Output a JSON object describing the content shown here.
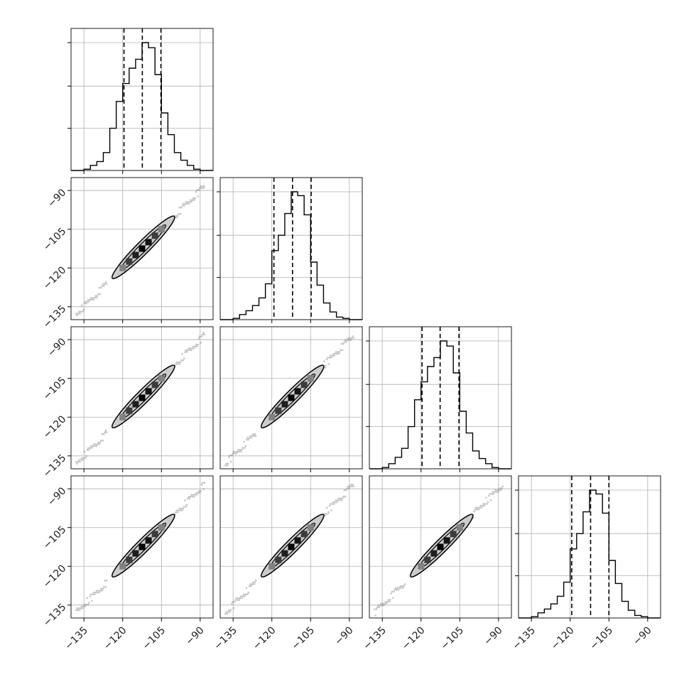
{
  "chart_data": {
    "type": "corner",
    "n_params": 4,
    "title": "",
    "param_labels": [
      "",
      "",
      "",
      ""
    ],
    "axis_range": [
      -140,
      -85
    ],
    "ticks": [
      -135,
      -120,
      -105,
      -90
    ],
    "tick_labels": [
      "−135",
      "−120",
      "−105",
      "−90"
    ],
    "grid": true,
    "histograms": [
      {
        "param": 1,
        "bin_edges": [
          -140,
          -137.5,
          -135,
          -132.5,
          -130,
          -127.5,
          -125,
          -122.5,
          -120,
          -117.5,
          -115,
          -112.5,
          -110,
          -107.5,
          -105,
          -102.5,
          -100,
          -97.5,
          -95,
          -92.5,
          -90,
          -87.5,
          -85
        ],
        "counts": [
          0,
          0,
          1,
          4,
          7,
          14,
          33,
          54,
          68,
          80,
          87,
          100,
          96,
          75,
          45,
          28,
          14,
          8,
          4,
          1,
          0,
          0
        ],
        "quantiles": [
          -119.5,
          -112.4,
          -105.2
        ]
      },
      {
        "param": 2,
        "bin_edges": [
          -140,
          -137.5,
          -135,
          -132.5,
          -130,
          -127.5,
          -125,
          -122.5,
          -120,
          -117.5,
          -115,
          -112.5,
          -110,
          -107.5,
          -105,
          -102.5,
          -100,
          -97.5,
          -95,
          -92.5,
          -90,
          -87.5,
          -85
        ],
        "counts": [
          0,
          0,
          1,
          4,
          7,
          11,
          17,
          28,
          54,
          66,
          83,
          100,
          97,
          82,
          45,
          27,
          13,
          6,
          2,
          1,
          0,
          0
        ],
        "quantiles": [
          -119.2,
          -112.0,
          -104.8
        ]
      },
      {
        "param": 3,
        "bin_edges": [
          -140,
          -137.5,
          -135,
          -132.5,
          -130,
          -127.5,
          -125,
          -122.5,
          -120,
          -117.5,
          -115,
          -112.5,
          -110,
          -107.5,
          -105,
          -102.5,
          -100,
          -97.5,
          -95,
          -92.5,
          -90,
          -87.5,
          -85
        ],
        "counts": [
          0,
          0,
          1,
          4,
          9,
          16,
          33,
          54,
          68,
          80,
          87,
          100,
          96,
          75,
          45,
          28,
          14,
          8,
          4,
          1,
          0,
          0
        ],
        "quantiles": [
          -119.6,
          -112.6,
          -105.3
        ]
      },
      {
        "param": 4,
        "bin_edges": [
          -140,
          -137.5,
          -135,
          -132.5,
          -130,
          -127.5,
          -125,
          -122.5,
          -120,
          -117.5,
          -115,
          -112.5,
          -110,
          -107.5,
          -105,
          -102.5,
          -100,
          -97.5,
          -95,
          -92.5,
          -90,
          -87.5,
          -85
        ],
        "counts": [
          0,
          0,
          1,
          4,
          7,
          11,
          17,
          28,
          54,
          66,
          83,
          100,
          97,
          82,
          45,
          27,
          13,
          6,
          2,
          1,
          0,
          0
        ],
        "quantiles": [
          -119.4,
          -112.1,
          -105.0
        ]
      }
    ],
    "joint_distributions": {
      "correlation": "strong positive, near-linear",
      "center": [
        -112,
        -112
      ],
      "contour_level_extent": [
        [
          -126,
          -126
        ],
        [
          -100,
          -100
        ]
      ],
      "density_cells": [
        {
          "x": -120,
          "y": -120,
          "level": 0.35
        },
        {
          "x": -117.5,
          "y": -117.5,
          "level": 0.7
        },
        {
          "x": -115,
          "y": -115,
          "level": 0.85
        },
        {
          "x": -112.5,
          "y": -112.5,
          "level": 1.0
        },
        {
          "x": -110,
          "y": -110,
          "level": 0.9
        },
        {
          "x": -107.5,
          "y": -107.5,
          "level": 0.7
        },
        {
          "x": -105,
          "y": -105,
          "level": 0.35
        }
      ],
      "outlier_range": [
        -138,
        -88
      ]
    },
    "colors": {
      "line": "#000000",
      "grid": "#b0b0b0",
      "fill": "#cccccc"
    }
  }
}
